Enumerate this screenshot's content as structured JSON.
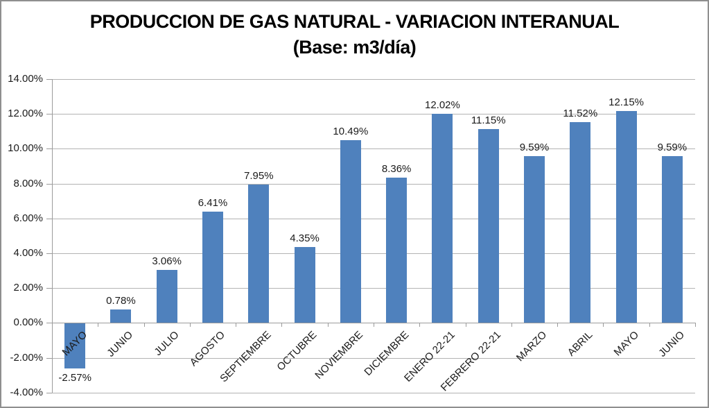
{
  "chart": {
    "title_line1": "PRODUCCION DE GAS NATURAL - VARIACION INTERANUAL",
    "title_line2": "(Base: m3/día)"
  },
  "chart_data": {
    "type": "bar",
    "title": "PRODUCCION DE GAS NATURAL - VARIACION INTERANUAL",
    "subtitle": "(Base: m3/día)",
    "xlabel": "",
    "ylabel": "",
    "categories": [
      "MAYO",
      "JUNIO",
      "JULIO",
      "AGOSTO",
      "SEPTIEMBRE",
      "OCTUBRE",
      "NOVIEMBRE",
      "DICIEMBRE",
      "ENERO 22-21",
      "FEBRERO 22-21",
      "MARZO",
      "ABRIL",
      "MAYO",
      "JUNIO"
    ],
    "values": [
      -2.57,
      0.78,
      3.06,
      6.41,
      7.95,
      4.35,
      10.49,
      8.36,
      12.02,
      11.15,
      9.59,
      11.52,
      12.15,
      9.59
    ],
    "data_labels": [
      "-2.57%",
      "0.78%",
      "3.06%",
      "6.41%",
      "7.95%",
      "4.35%",
      "10.49%",
      "8.36%",
      "12.02%",
      "11.15%",
      "9.59%",
      "11.52%",
      "12.15%",
      "9.59%"
    ],
    "ylim": [
      -4,
      14
    ],
    "ytick_step": 2,
    "ytick_labels": [
      "14.00%",
      "12.00%",
      "10.00%",
      "8.00%",
      "6.00%",
      "4.00%",
      "2.00%",
      "0.00%",
      "-2.00%",
      "-4.00%"
    ],
    "grid": true,
    "legend_position": "none",
    "bar_color": "#4f81bd",
    "gridline_color": "#b3b3b3",
    "axis_color": "#9b9b9b",
    "text_color": "#1a1a1a"
  }
}
